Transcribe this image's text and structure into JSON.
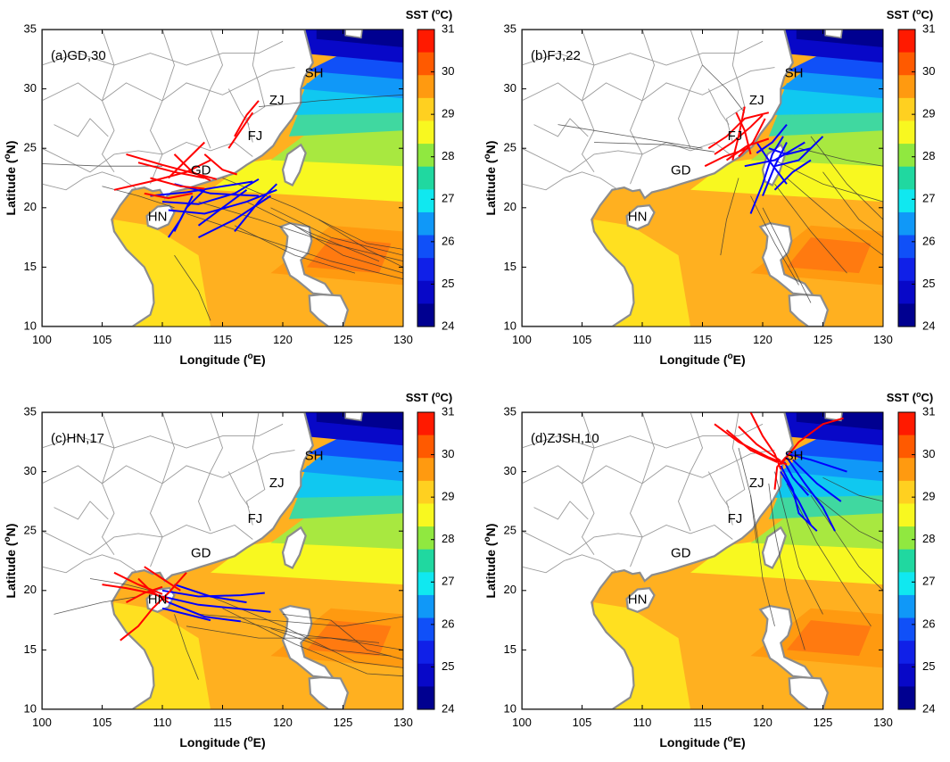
{
  "panels": [
    {
      "id": "a",
      "label": "(a)GD,30",
      "highlight": "GD"
    },
    {
      "id": "b",
      "label": "(b)FJ,22",
      "highlight": "FJ"
    },
    {
      "id": "c",
      "label": "(c)HN,17",
      "highlight": "HN"
    },
    {
      "id": "d",
      "label": "(d)ZJSH,10",
      "highlight": "ZJSH"
    }
  ],
  "map": {
    "lon_range": [
      100,
      130
    ],
    "lat_range": [
      10,
      35
    ],
    "lon_ticks": [
      "100",
      "105",
      "110",
      "115",
      "120",
      "125",
      "130"
    ],
    "lat_ticks": [
      "10",
      "15",
      "20",
      "25",
      "30",
      "35"
    ],
    "xlabel_main": "Longitude (",
    "xlabel_sup": "o",
    "xlabel_end": "E)",
    "ylabel_main": "Latitude (",
    "ylabel_sup": "o",
    "ylabel_end": "N)",
    "regions": [
      {
        "name": "SH",
        "lon": 122.6,
        "lat": 31.3
      },
      {
        "name": "ZJ",
        "lon": 119.5,
        "lat": 29.0
      },
      {
        "name": "FJ",
        "lon": 117.7,
        "lat": 26.0
      },
      {
        "name": "GD",
        "lon": 113.2,
        "lat": 23.1
      },
      {
        "name": "HN",
        "lon": 109.6,
        "lat": 19.2
      }
    ]
  },
  "colorbar": {
    "title_main": "SST (",
    "title_sup": "o",
    "title_end": "C)",
    "ticks": [
      "31",
      "30",
      "29",
      "28",
      "27",
      "26",
      "25",
      "24"
    ],
    "colors": [
      "#ff1a00",
      "#ff5a00",
      "#ff9a10",
      "#ffd020",
      "#f8f820",
      "#90e840",
      "#20d8a0",
      "#10e8f0",
      "#1098f8",
      "#1050f8",
      "#1020e8",
      "#0808c8",
      "#000090"
    ]
  },
  "legend_colors": {
    "land": "#ffffff",
    "coast": "#8c8c8c",
    "landfall_track": "#ff0000",
    "ocean_track": "#0000ff",
    "other_track": "#333333",
    "border": "#9a9a9a"
  }
}
